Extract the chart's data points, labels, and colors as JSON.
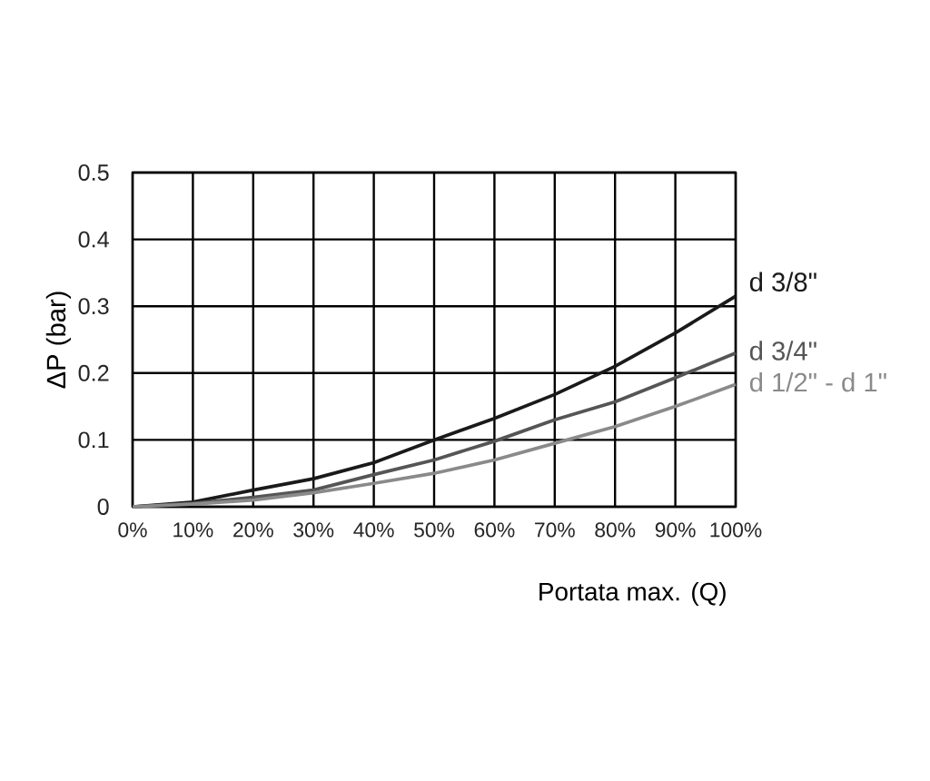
{
  "chart_data": {
    "type": "line",
    "xlabel": "Portata max. (Q)",
    "ylabel": "ΔP (bar)",
    "x": [
      0,
      10,
      20,
      30,
      40,
      50,
      60,
      70,
      80,
      90,
      100
    ],
    "series": [
      {
        "name": "d 3/8\"",
        "color": "#1a1a1a",
        "values": [
          0,
          0.007,
          0.025,
          0.042,
          0.066,
          0.1,
          0.132,
          0.168,
          0.21,
          0.26,
          0.315
        ]
      },
      {
        "name": "d 3/4\"",
        "color": "#555555",
        "values": [
          0,
          0.005,
          0.014,
          0.025,
          0.048,
          0.07,
          0.098,
          0.13,
          0.157,
          0.193,
          0.23
        ]
      },
      {
        "name": "d 1/2\" - d 1\"",
        "color": "#8a8a8a",
        "values": [
          0,
          0.004,
          0.01,
          0.021,
          0.035,
          0.05,
          0.07,
          0.095,
          0.12,
          0.15,
          0.183
        ]
      }
    ],
    "xlim": [
      0,
      100
    ],
    "ylim": [
      0,
      0.5
    ],
    "xticks": [
      {
        "value": 0,
        "label": "0%"
      },
      {
        "value": 10,
        "label": "10%"
      },
      {
        "value": 20,
        "label": "20%"
      },
      {
        "value": 30,
        "label": "30%"
      },
      {
        "value": 40,
        "label": "40%"
      },
      {
        "value": 50,
        "label": "50%"
      },
      {
        "value": 60,
        "label": "60%"
      },
      {
        "value": 70,
        "label": "70%"
      },
      {
        "value": 80,
        "label": "80%"
      },
      {
        "value": 90,
        "label": "90%"
      },
      {
        "value": 100,
        "label": "100%"
      }
    ],
    "yticks": [
      0,
      0.1,
      0.2,
      0.3,
      0.4,
      0.5
    ],
    "grid": true,
    "legend": false,
    "marker": "none",
    "line_style": "solid"
  }
}
